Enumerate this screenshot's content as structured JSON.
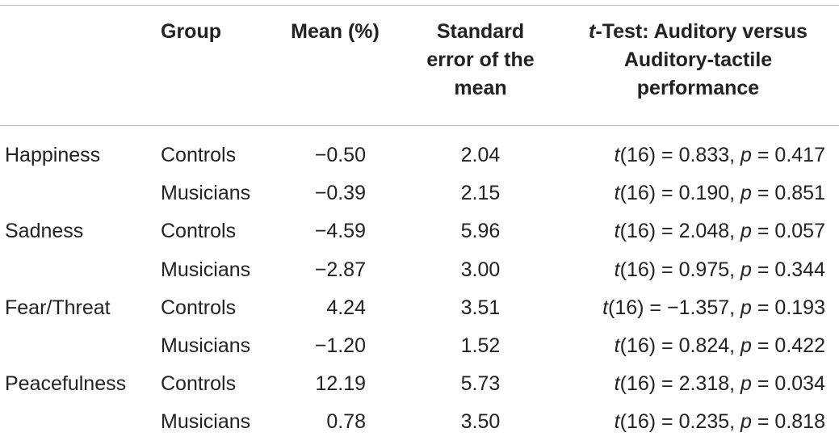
{
  "headers": {
    "emotion": "",
    "group": "Group",
    "mean": "Mean (%)",
    "sem_line1": "Standard",
    "sem_line2": "error of the",
    "sem_line3": "mean",
    "ttest_italic": "t",
    "ttest_line1_rest": "-Test: Auditory versus",
    "ttest_line2": "Auditory-tactile",
    "ttest_line3": "performance"
  },
  "rows": [
    {
      "emotion": "Happiness",
      "group": "Controls",
      "mean": "−0.50",
      "sem": "2.04",
      "t_label": "t",
      "t_df": "(16) = 0.833, ",
      "p_label": "p",
      "p_val": " = 0.417"
    },
    {
      "emotion": "",
      "group": "Musicians",
      "mean": "−0.39",
      "sem": "2.15",
      "t_label": "t",
      "t_df": "(16) = 0.190, ",
      "p_label": "p",
      "p_val": " = 0.851"
    },
    {
      "emotion": "Sadness",
      "group": "Controls",
      "mean": "−4.59",
      "sem": "5.96",
      "t_label": "t",
      "t_df": "(16) = 2.048, ",
      "p_label": "p",
      "p_val": " = 0.057"
    },
    {
      "emotion": "",
      "group": "Musicians",
      "mean": "−2.87",
      "sem": "3.00",
      "t_label": "t",
      "t_df": "(16) = 0.975, ",
      "p_label": "p",
      "p_val": " = 0.344"
    },
    {
      "emotion": "Fear/Threat",
      "group": "Controls",
      "mean": "4.24",
      "sem": "3.51",
      "t_label": "t",
      "t_df": "(16) = −1.357, ",
      "p_label": "p",
      "p_val": " = 0.193"
    },
    {
      "emotion": "",
      "group": "Musicians",
      "mean": "−1.20",
      "sem": "1.52",
      "t_label": "t",
      "t_df": "(16) = 0.824, ",
      "p_label": "p",
      "p_val": " = 0.422"
    },
    {
      "emotion": "Peacefulness",
      "group": "Controls",
      "mean": "12.19",
      "sem": "5.73",
      "t_label": "t",
      "t_df": "(16) = 2.318, ",
      "p_label": "p",
      "p_val": " = 0.034"
    },
    {
      "emotion": "",
      "group": "Musicians",
      "mean": "0.78",
      "sem": "3.50",
      "t_label": "t",
      "t_df": "(16) = 0.235, ",
      "p_label": "p",
      "p_val": " = 0.818"
    }
  ]
}
